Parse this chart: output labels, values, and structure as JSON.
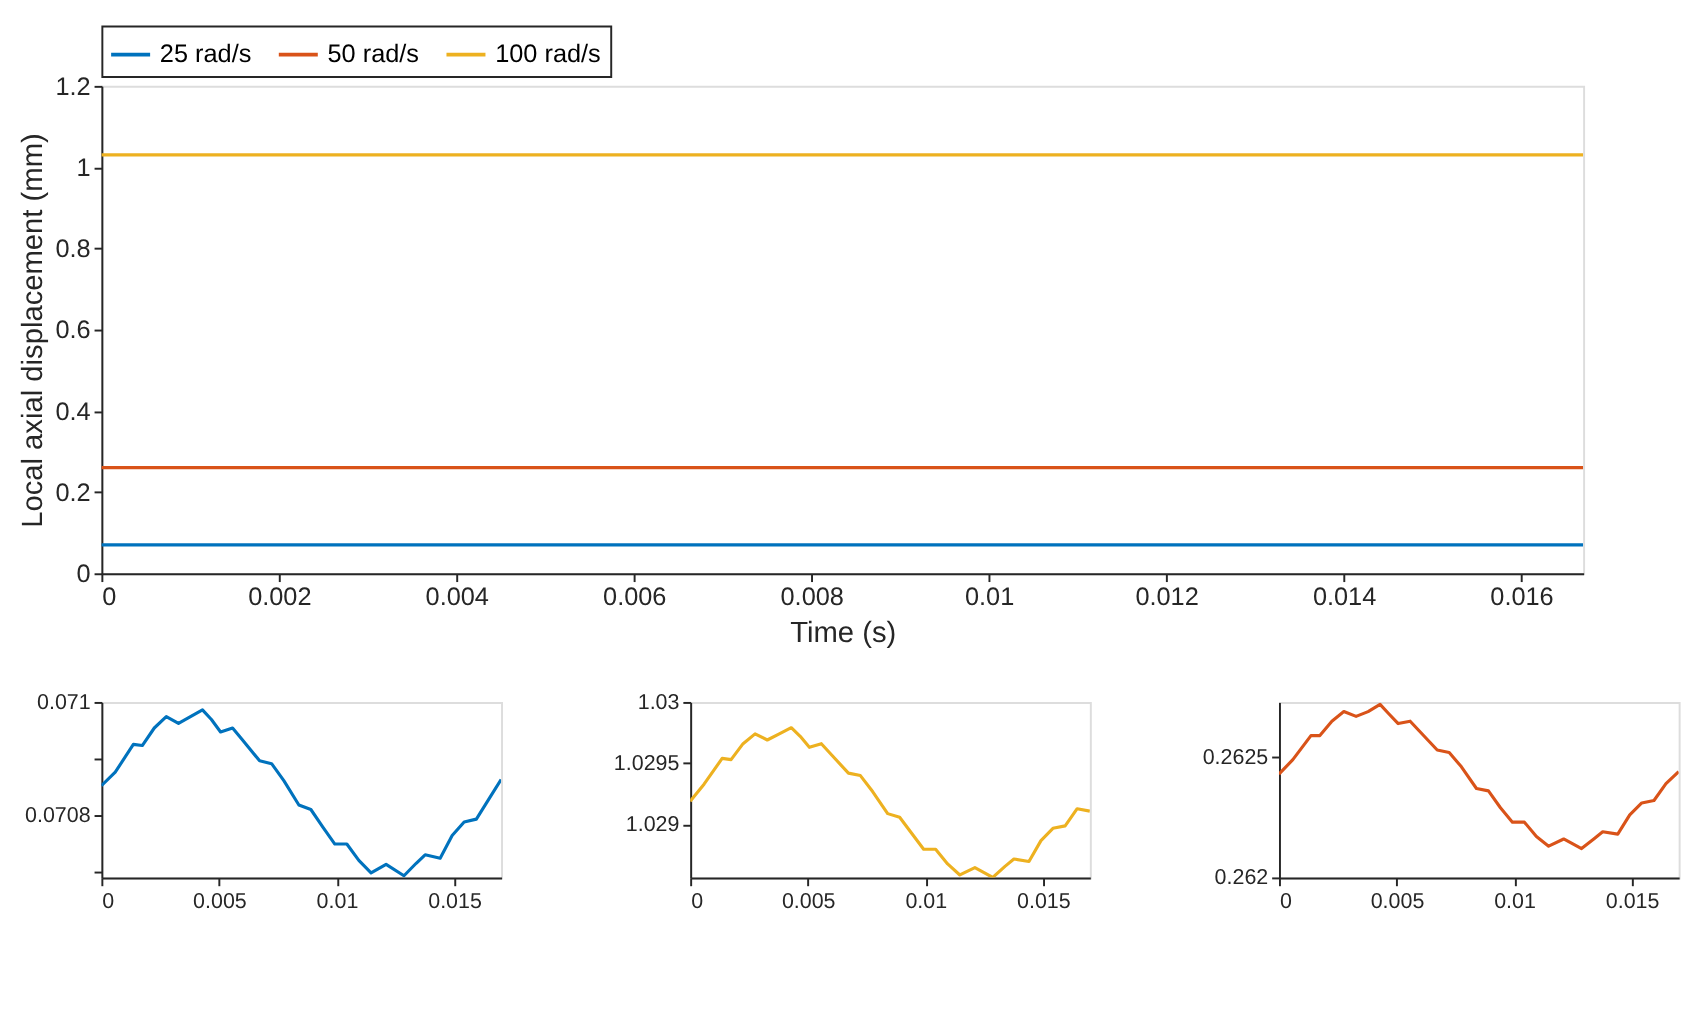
{
  "chart_data": [
    {
      "type": "line",
      "xlabel": "Time (s)",
      "ylabel": "Local axial displacement (mm)",
      "xlim": [
        0,
        0.0167
      ],
      "ylim": [
        0,
        1.2
      ],
      "xticks": [
        0,
        0.002,
        0.004,
        0.006,
        0.008,
        0.01,
        0.012,
        0.014,
        0.016
      ],
      "yticks": [
        0,
        0.2,
        0.4,
        0.6,
        0.8,
        1,
        1.2
      ],
      "legend": "top",
      "grid": false,
      "x": [
        0,
        0.0167
      ],
      "series": [
        {
          "name": "25 rad/s",
          "color": "#0072bd",
          "values": [
            0.07,
            0.07
          ]
        },
        {
          "name": "50 rad/s",
          "color": "#d95319",
          "values": [
            0.26,
            0.26
          ]
        },
        {
          "name": "100 rad/s",
          "color": "#edb120",
          "values": [
            1.03,
            1.03
          ]
        }
      ]
    },
    {
      "type": "line",
      "xlim": [
        0,
        0.017
      ],
      "ylim": [
        0.07069,
        0.071
      ],
      "xticks": [
        0,
        0.005,
        0.01,
        0.015
      ],
      "yticks": [
        {
          "value": 0.0707,
          "label": null
        },
        0.0708,
        {
          "value": 0.0709,
          "label": null
        },
        0.071
      ],
      "grid": false,
      "x": [
        0,
        0.00059,
        0.00136,
        0.00174,
        0.00225,
        0.00276,
        0.00328,
        0.00379,
        0.0043,
        0.00468,
        0.00507,
        0.00558,
        0.00596,
        0.00673,
        0.00724,
        0.00776,
        0.0084,
        0.00891,
        0.00942,
        0.00993,
        0.01044,
        0.01095,
        0.01147,
        0.01211,
        0.01287,
        0.01339,
        0.01377,
        0.01441,
        0.01492,
        0.01543,
        0.01595,
        0.01646,
        0.017
      ],
      "series": [
        {
          "color": "#0072bd",
          "values": [
            0.070852,
            0.070876,
            0.070925,
            0.070923,
            0.070954,
            0.070974,
            0.070962,
            0.070974,
            0.070986,
            0.070969,
            0.070947,
            0.070954,
            0.070935,
            0.070896,
            0.070891,
            0.070861,
            0.070818,
            0.07081,
            0.070779,
            0.070749,
            0.070749,
            0.07072,
            0.070698,
            0.070713,
            0.070693,
            0.070715,
            0.07073,
            0.070724,
            0.070764,
            0.070788,
            0.070793,
            0.070827,
            0.070863
          ]
        }
      ]
    },
    {
      "type": "line",
      "xlim": [
        0,
        0.017
      ],
      "ylim": [
        1.02857,
        1.03
      ],
      "xticks": [
        0,
        0.005,
        0.01,
        0.015
      ],
      "yticks": [
        1.029,
        1.0295,
        1.03
      ],
      "grid": false,
      "x": [
        0,
        0.00059,
        0.00136,
        0.00174,
        0.00225,
        0.00276,
        0.00328,
        0.00379,
        0.0043,
        0.00468,
        0.00507,
        0.00558,
        0.00596,
        0.00673,
        0.00724,
        0.00776,
        0.0084,
        0.00891,
        0.00942,
        0.00993,
        0.01044,
        0.01095,
        0.01147,
        0.01211,
        0.01287,
        0.01339,
        0.01377,
        0.01441,
        0.01492,
        0.01543,
        0.01595,
        0.01646,
        0.017
      ],
      "series": [
        {
          "color": "#edb120",
          "values": [
            1.02919,
            1.02933,
            1.02954,
            1.02953,
            1.02966,
            1.02974,
            1.02969,
            1.02974,
            1.02979,
            1.02972,
            1.02963,
            1.02966,
            1.02958,
            1.02942,
            1.0294,
            1.02927,
            1.02909,
            1.02906,
            1.02893,
            1.0288,
            1.0288,
            1.02868,
            1.02859,
            1.02865,
            1.02857,
            1.02866,
            1.02872,
            1.0287,
            1.02887,
            1.02897,
            1.02899,
            1.02913,
            1.02911
          ]
        }
      ]
    },
    {
      "type": "line",
      "xlim": [
        0,
        0.017
      ],
      "ylim": [
        0.262,
        0.26273
      ],
      "xticks": [
        0,
        0.005,
        0.01,
        0.015
      ],
      "yticks": [
        0.262,
        0.2625
      ],
      "grid": false,
      "x": [
        0,
        0.00059,
        0.00136,
        0.00174,
        0.00225,
        0.00276,
        0.00328,
        0.00379,
        0.0043,
        0.00468,
        0.00507,
        0.00558,
        0.00596,
        0.00673,
        0.00724,
        0.00776,
        0.0084,
        0.00891,
        0.00942,
        0.00993,
        0.01044,
        0.01095,
        0.01147,
        0.01211,
        0.01287,
        0.01339,
        0.01377,
        0.01441,
        0.01492,
        0.01543,
        0.01595,
        0.01646,
        0.017
      ],
      "series": [
        {
          "color": "#d95319",
          "values": [
            0.26243,
            0.26249,
            0.26259,
            0.26259,
            0.26265,
            0.26269,
            0.26267,
            0.26269,
            0.26272,
            0.26268,
            0.26264,
            0.26265,
            0.26261,
            0.26253,
            0.26252,
            0.26246,
            0.26237,
            0.26236,
            0.26229,
            0.26223,
            0.26223,
            0.26217,
            0.26213,
            0.26216,
            0.26212,
            0.26216,
            0.26219,
            0.26218,
            0.26226,
            0.26231,
            0.26232,
            0.26239,
            0.26244
          ]
        }
      ]
    }
  ]
}
